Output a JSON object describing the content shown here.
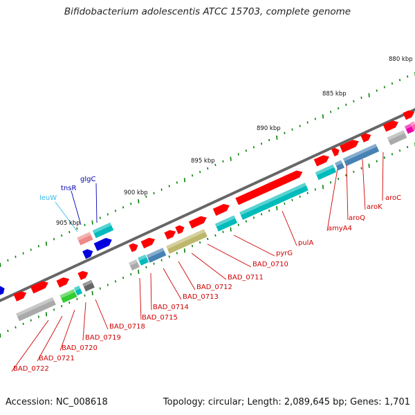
{
  "title": "Bifidobacterium adolescentis ATCC 15703, complete genome",
  "footer": {
    "accession": "Accession: NC_008618",
    "summary": "Topology: circular; Length: 2,089,645 bp; Genes: 1,701"
  },
  "colors": {
    "cds_red": "#ff0000",
    "label_red": "#d00000",
    "label_blue": "#0000b0",
    "label_lightblue": "#33bbee",
    "teal": "#00bbbb",
    "steelblue": "#4682b4",
    "olive": "#bdb76b",
    "green": "#33cc33",
    "gray": "#aaaaaa",
    "darkgray": "#666666",
    "pink": "#ff66aa",
    "magenta": "#ee00aa",
    "tick_green": "#008000",
    "backbone": "#666666"
  },
  "kbp_ticks": [
    {
      "label": "880 kbp"
    },
    {
      "label": "885 kbp"
    },
    {
      "label": "890 kbp"
    },
    {
      "label": "895 kbp"
    },
    {
      "label": "900 kbp"
    },
    {
      "label": "905 kbp"
    }
  ],
  "gene_labels": [
    {
      "text": "aroC",
      "color": "red"
    },
    {
      "text": "aroK",
      "color": "red"
    },
    {
      "text": "aroQ",
      "color": "red"
    },
    {
      "text": "amyA4",
      "color": "red"
    },
    {
      "text": "pulA",
      "color": "red"
    },
    {
      "text": "pyrG",
      "color": "red"
    },
    {
      "text": "BAD_0710",
      "color": "red"
    },
    {
      "text": "BAD_0711",
      "color": "red"
    },
    {
      "text": "BAD_0712",
      "color": "red"
    },
    {
      "text": "BAD_0713",
      "color": "red"
    },
    {
      "text": "BAD_0714",
      "color": "red"
    },
    {
      "text": "BAD_0715",
      "color": "red"
    },
    {
      "text": "BAD_0718",
      "color": "red"
    },
    {
      "text": "BAD_0719",
      "color": "red"
    },
    {
      "text": "BAD_0720",
      "color": "red"
    },
    {
      "text": "BAD_0721",
      "color": "red"
    },
    {
      "text": "BAD_0722",
      "color": "red"
    },
    {
      "text": "glgC",
      "color": "blue"
    },
    {
      "text": "tnsR",
      "color": "blue"
    },
    {
      "text": "leuW",
      "color": "lightblue"
    }
  ]
}
